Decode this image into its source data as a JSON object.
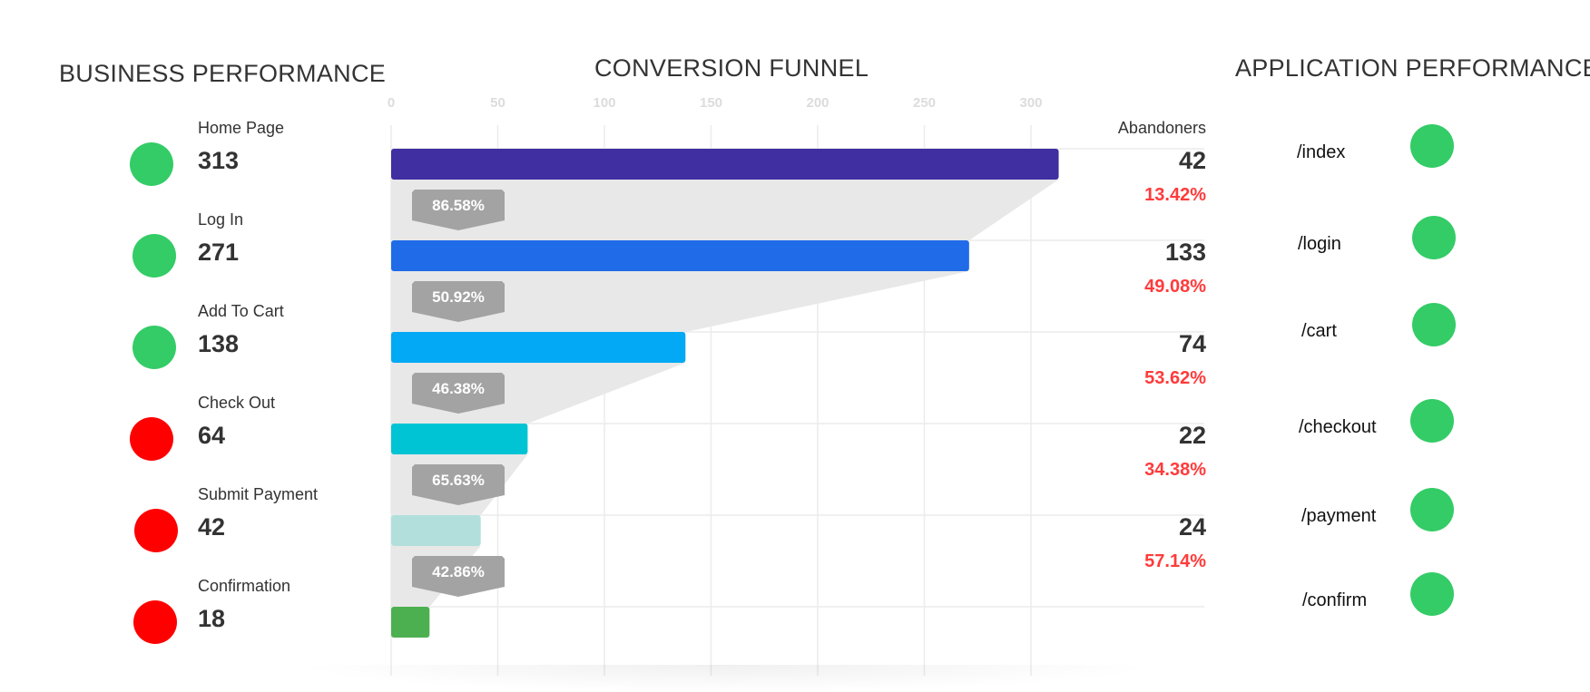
{
  "titles": {
    "business": "BUSINESS PERFORMANCE",
    "funnel": "CONVERSION FUNNEL",
    "application": "APPLICATION PERFORMANCE"
  },
  "abandoners_header": "Abandoners",
  "status_colors": {
    "good": "#33cc66",
    "bad": "#ff0000"
  },
  "chart_data": {
    "type": "bar",
    "orientation": "horizontal",
    "title": "CONVERSION FUNNEL",
    "xlim": [
      0,
      320
    ],
    "xticks": [
      0,
      50,
      100,
      150,
      200,
      250,
      300
    ],
    "grid": true,
    "categories": [
      "Home Page",
      "Log In",
      "Add To Cart",
      "Check Out",
      "Submit Payment",
      "Confirmation"
    ],
    "values": [
      313,
      271,
      138,
      64,
      42,
      18
    ],
    "value_labels": [
      "313",
      "271",
      "138",
      "64",
      "42",
      "18"
    ],
    "bar_colors": [
      "#3f2fa0",
      "#1f6be8",
      "#03a9f4",
      "#00c4d4",
      "#b2dfdb",
      "#4caf50"
    ],
    "conversion_rates": [
      "86.58%",
      "50.92%",
      "46.38%",
      "65.63%",
      "42.86%"
    ],
    "abandoners": [
      "42",
      "133",
      "74",
      "22",
      "24"
    ],
    "abandon_rates": [
      "13.42%",
      "49.08%",
      "53.62%",
      "34.38%",
      "57.14%"
    ]
  },
  "business_status": [
    "good",
    "good",
    "good",
    "bad",
    "bad",
    "bad"
  ],
  "application": [
    {
      "path": "/index",
      "status": "good"
    },
    {
      "path": "/login",
      "status": "good"
    },
    {
      "path": "/cart",
      "status": "good"
    },
    {
      "path": "/checkout",
      "status": "good"
    },
    {
      "path": "/payment",
      "status": "good"
    },
    {
      "path": "/confirm",
      "status": "good"
    }
  ]
}
